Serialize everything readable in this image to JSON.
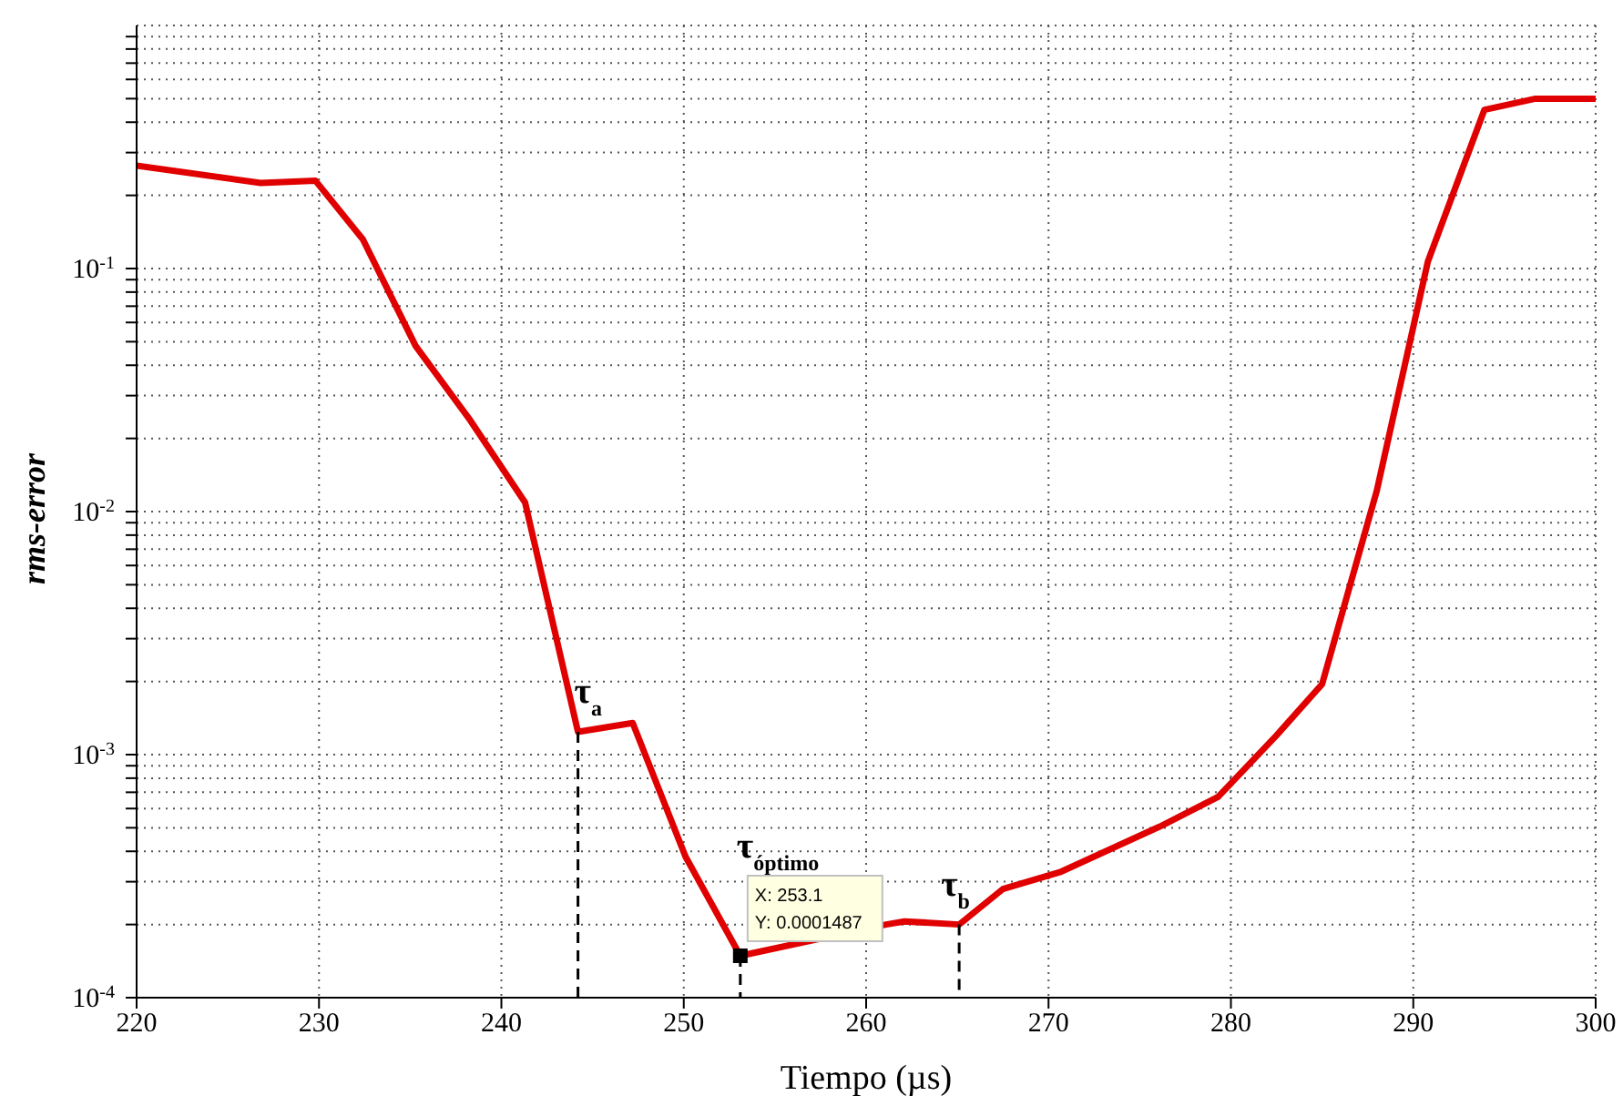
{
  "chart_data": {
    "type": "line",
    "xlabel": "Tiempo (µs)",
    "ylabel": "rms-error",
    "log": "y",
    "grid": true,
    "marker": "none",
    "line_style": "solid",
    "xlim": [
      220,
      300
    ],
    "xticks": [
      220,
      230,
      240,
      250,
      260,
      270,
      280,
      290,
      300
    ],
    "ylim": [
      0.0001,
      1
    ],
    "yticks": [
      {
        "value": 0.0001,
        "label": "10$^{-4}$"
      },
      {
        "value": 0.0002,
        "label": null
      },
      {
        "value": 0.0003,
        "label": null
      },
      {
        "value": 0.0004,
        "label": null
      },
      {
        "value": 0.0005,
        "label": null
      },
      {
        "value": 0.0006,
        "label": null
      },
      {
        "value": 0.0007,
        "label": null
      },
      {
        "value": 0.0008,
        "label": null
      },
      {
        "value": 0.0009,
        "label": null
      },
      {
        "value": 0.001,
        "label": "10$^{-3}$"
      },
      {
        "value": 0.002,
        "label": null
      },
      {
        "value": 0.003,
        "label": null
      },
      {
        "value": 0.004,
        "label": null
      },
      {
        "value": 0.005,
        "label": null
      },
      {
        "value": 0.006,
        "label": null
      },
      {
        "value": 0.007,
        "label": null
      },
      {
        "value": 0.008,
        "label": null
      },
      {
        "value": 0.009,
        "label": null
      },
      {
        "value": 0.01,
        "label": "10$^{-2}$"
      },
      {
        "value": 0.02,
        "label": null
      },
      {
        "value": 0.03,
        "label": null
      },
      {
        "value": 0.04,
        "label": null
      },
      {
        "value": 0.05,
        "label": null
      },
      {
        "value": 0.06,
        "label": null
      },
      {
        "value": 0.07,
        "label": null
      },
      {
        "value": 0.08,
        "label": null
      },
      {
        "value": 0.09,
        "label": null
      },
      {
        "value": 0.1,
        "label": "10$^{-1}$"
      },
      {
        "value": 0.2,
        "label": null
      },
      {
        "value": 0.3,
        "label": null
      },
      {
        "value": 0.4,
        "label": null
      },
      {
        "value": 0.5,
        "label": null
      },
      {
        "value": 0.6,
        "label": null
      },
      {
        "value": 0.7,
        "label": null
      },
      {
        "value": 0.8,
        "label": null
      },
      {
        "value": 0.9,
        "label": null
      }
    ],
    "series": [
      {
        "type": "line",
        "color": "#e00000",
        "x": [
          220,
          226.8,
          229.8,
          232.4,
          235.3,
          238.3,
          241.3,
          244.2,
          247.2,
          250.1,
          253.1,
          261.1,
          262.1,
          265.1,
          267.5,
          270.7,
          276.2,
          279.3,
          282.5,
          285,
          288,
          290.8,
          293.9,
          296.7,
          300
        ],
        "values": [
          0.265,
          0.225,
          0.23,
          0.132,
          0.048,
          0.0237,
          0.0109,
          0.00124,
          0.00135,
          0.00038,
          0.0001487,
          0.0002,
          0.000206,
          0.0002,
          0.00028,
          0.00033,
          0.00051,
          0.00067,
          0.0012,
          0.00195,
          0.0122,
          0.107,
          0.45,
          0.5,
          0.5
        ]
      },
      {
        "type": "line",
        "color": "#000000",
        "line_style": "dashed",
        "x": [
          244.2,
          244.2
        ],
        "values": [
          0.00124,
          0.0001
        ]
      },
      {
        "type": "line",
        "color": "#000000",
        "line_style": "dashed",
        "x": [
          253.1,
          253.1
        ],
        "values": [
          0.0001487,
          0.0001
        ]
      },
      {
        "type": "line",
        "color": "#000000",
        "line_style": "dashed",
        "x": [
          265.1,
          265.1
        ],
        "values": [
          0.0002,
          0.0001
        ]
      },
      {
        "type": "scatter",
        "color": "#000000",
        "marker": "square",
        "x": [
          253.1
        ],
        "values": [
          0.0001487
        ]
      }
    ],
    "annotations": [
      {
        "text": "τ$_{a}$",
        "x": 244.2,
        "y": 0.00124
      },
      {
        "text": "τ$_{óptimo}$",
        "x": 253.1,
        "y": 0.0001487
      },
      {
        "text": "τ$_{b}$",
        "x": 265.1,
        "y": 0.0002
      },
      {
        "text": "X: 253.1\nY: 0.0001487",
        "x": 253.1,
        "y": 0.0001487
      }
    ]
  }
}
